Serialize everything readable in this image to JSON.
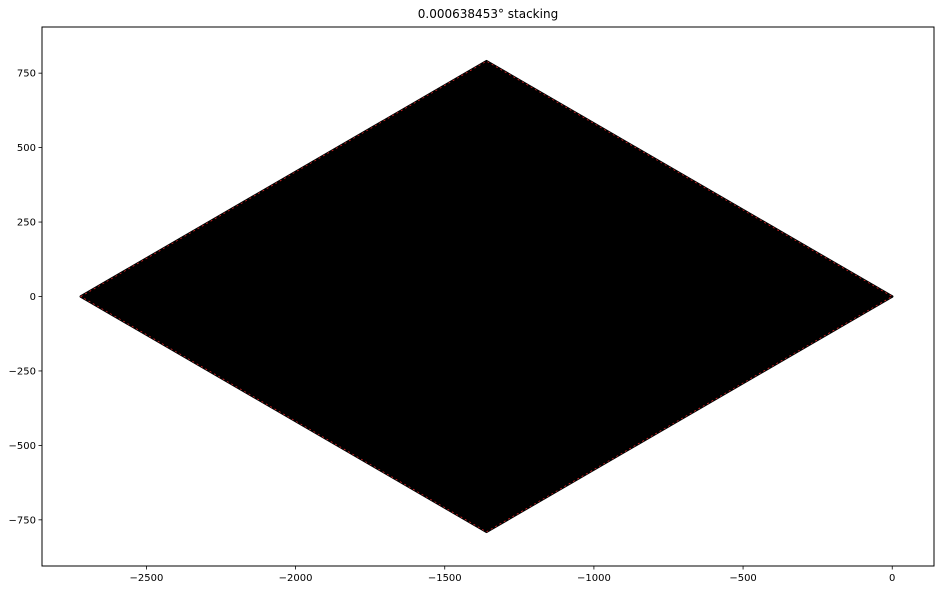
{
  "chart_data": {
    "type": "scatter",
    "title": "0.000638453° stacking",
    "xlabel": "",
    "ylabel": "",
    "xlim": [
      -2850,
      140
    ],
    "ylim": [
      -905,
      905
    ],
    "xticks": [
      -2500,
      -2000,
      -1500,
      -1000,
      -500,
      0
    ],
    "xtick_labels": [
      "−2500",
      "−2000",
      "−1500",
      "−1000",
      "−500",
      "0"
    ],
    "yticks": [
      -750,
      -500,
      -250,
      0,
      250,
      500,
      750
    ],
    "ytick_labels": [
      "−750",
      "−500",
      "−250",
      "0",
      "250",
      "500",
      "750"
    ],
    "grid": false,
    "legend": false,
    "region": {
      "shape": "rhombus",
      "vertices": [
        [
          -2720,
          0
        ],
        [
          -1360,
          790
        ],
        [
          0,
          0
        ],
        [
          -1360,
          -790
        ]
      ],
      "fill_color": "#000000",
      "edge_color": "#d62728"
    }
  }
}
